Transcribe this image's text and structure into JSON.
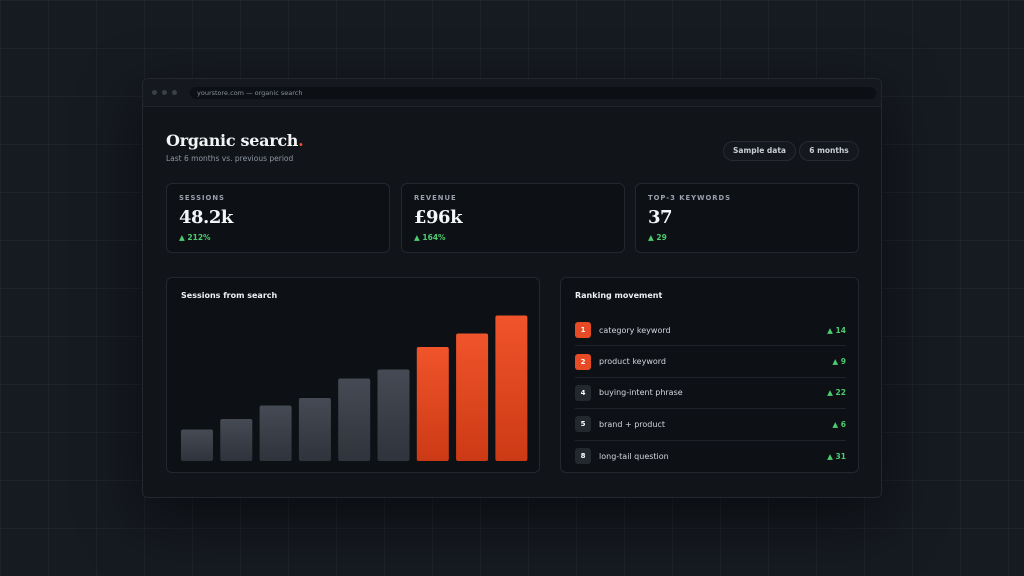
{
  "browser": {
    "url": "yourstore.com — organic search"
  },
  "header": {
    "title": "Organic search",
    "title_accent": ".",
    "subtitle": "Last 6 months vs. previous period",
    "chip_sample": "Sample data",
    "chip_period": "6 months"
  },
  "kpis": [
    {
      "label": "SESSIONS",
      "value": "48.2k",
      "delta": "▲ 212%"
    },
    {
      "label": "REVENUE",
      "value": "£96k",
      "delta": "▲ 164%"
    },
    {
      "label": "TOP-3 KEYWORDS",
      "value": "37",
      "delta": "▲ 29"
    }
  ],
  "chart": {
    "title": "Sessions from search"
  },
  "chart_data": {
    "type": "bar",
    "values": [
      21,
      28,
      37,
      42,
      55,
      61,
      76,
      85,
      97
    ],
    "highlighted": [
      false,
      false,
      false,
      false,
      false,
      false,
      true,
      true,
      true
    ],
    "ylim": [
      0,
      100
    ],
    "colors": {
      "base": "#3b4049",
      "highlight": "#e8502a"
    }
  },
  "ranking": {
    "title": "Ranking movement",
    "items": [
      {
        "rank": "1",
        "name": "category keyword",
        "delta": "▲ 14",
        "hot": true
      },
      {
        "rank": "2",
        "name": "product keyword",
        "delta": "▲ 9",
        "hot": true
      },
      {
        "rank": "4",
        "name": "buying-intent phrase",
        "delta": "▲ 22",
        "hot": false
      },
      {
        "rank": "5",
        "name": "brand + product",
        "delta": "▲ 6",
        "hot": false
      },
      {
        "rank": "8",
        "name": "long-tail question",
        "delta": "▲ 31",
        "hot": false
      }
    ]
  },
  "colors": {
    "accent": "#e8502a",
    "positive": "#4ccb6f",
    "background": "#161a21"
  }
}
